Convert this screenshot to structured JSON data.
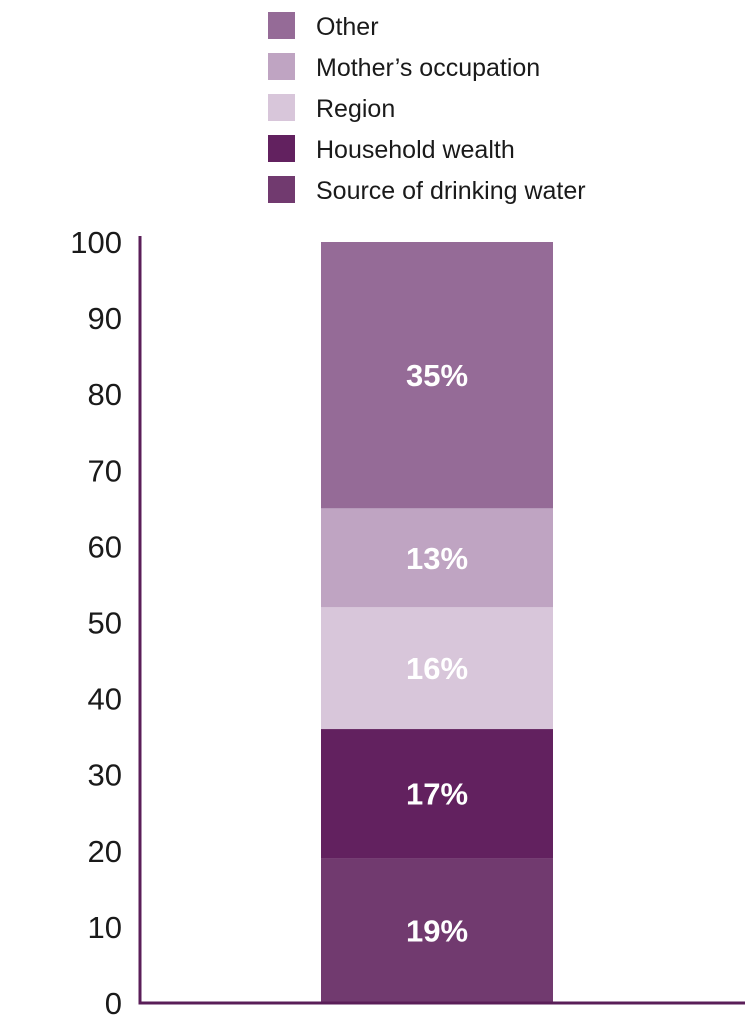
{
  "chart_data": {
    "type": "bar",
    "stacked": true,
    "categories": [
      ""
    ],
    "series": [
      {
        "name": "Source of drinking water",
        "values": [
          19
        ],
        "label": "19%",
        "color": "#713a6f"
      },
      {
        "name": "Household wealth",
        "values": [
          17
        ],
        "label": "17%",
        "color": "#62215f"
      },
      {
        "name": "Region",
        "values": [
          16
        ],
        "label": "16%",
        "color": "#d8c6da"
      },
      {
        "name": "Mother’s occupation",
        "values": [
          13
        ],
        "label": "13%",
        "color": "#bfa4c2"
      },
      {
        "name": "Other",
        "values": [
          35
        ],
        "label": "35%",
        "color": "#956b97"
      }
    ],
    "legend_order": [
      "Other",
      "Mother’s occupation",
      "Region",
      "Household wealth",
      "Source of drinking water"
    ],
    "legend_position": "top",
    "ylim": [
      0,
      100
    ],
    "yticks": [
      "0",
      "10",
      "20",
      "30",
      "40",
      "50",
      "60",
      "70",
      "80",
      "90",
      "100"
    ],
    "xlabel": "",
    "ylabel": "",
    "grid": false,
    "axis_color": "#5a1e58"
  }
}
